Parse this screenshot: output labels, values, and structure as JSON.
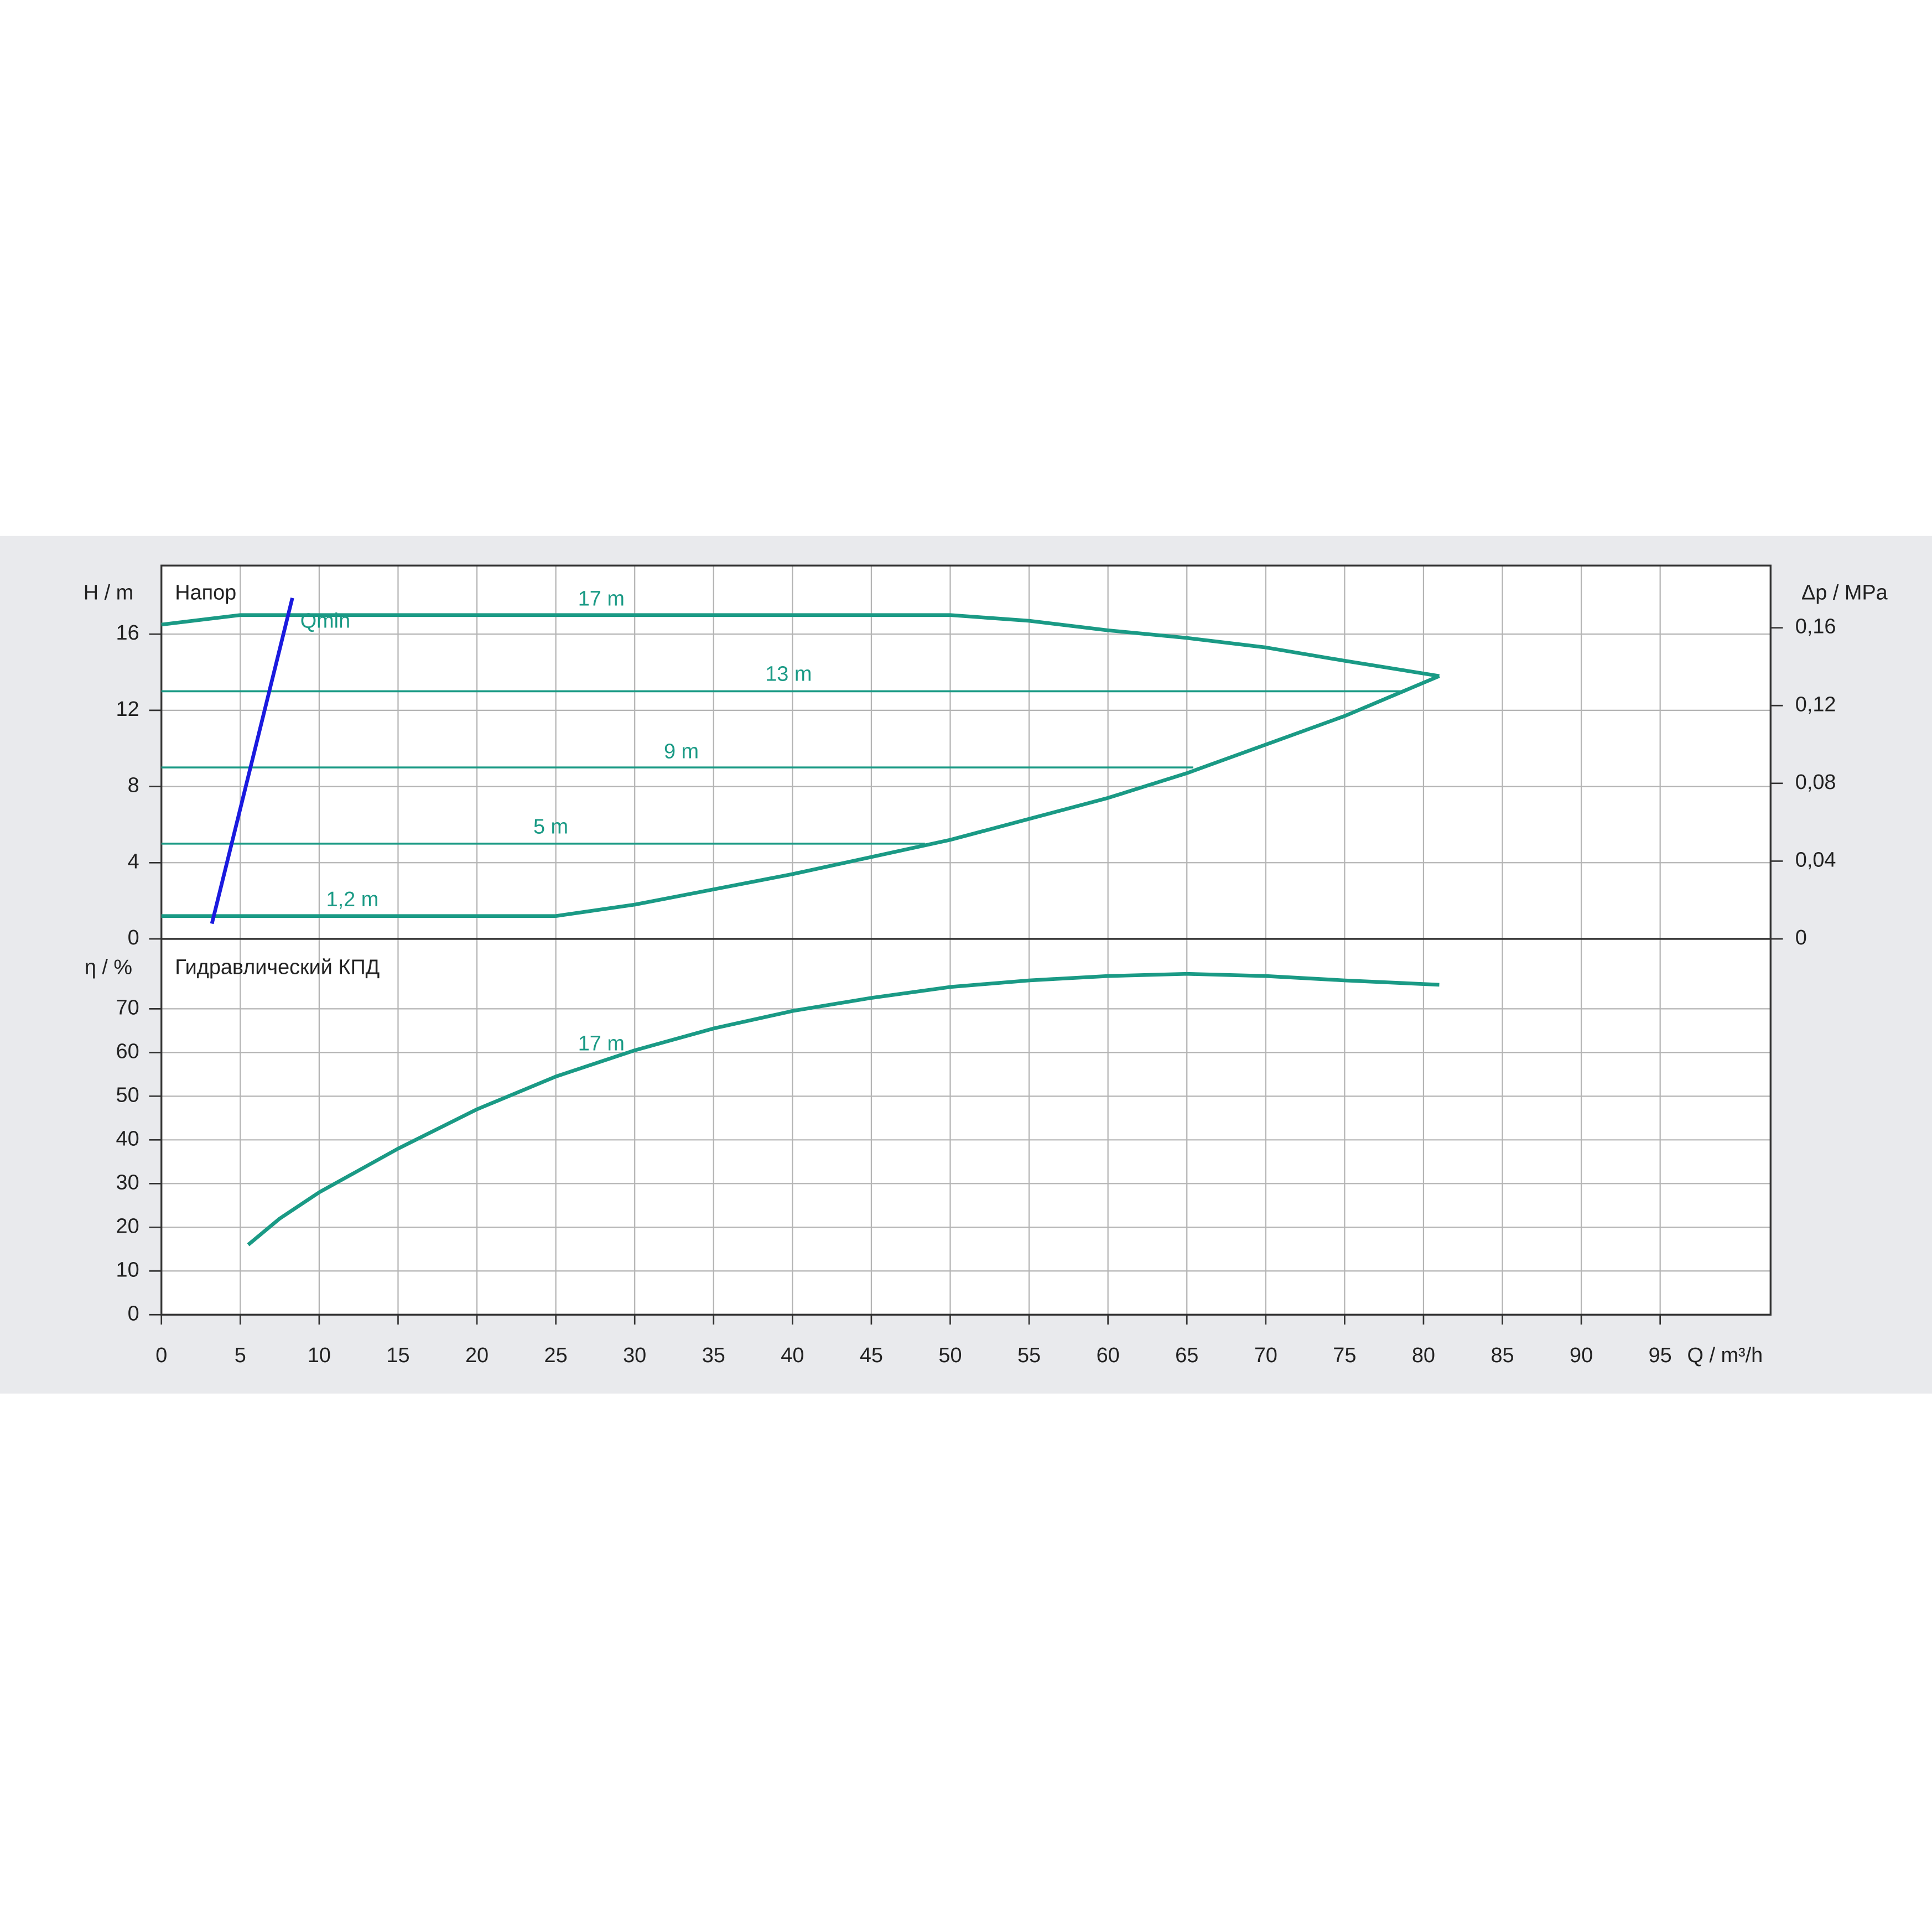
{
  "chart_data": [
    {
      "type": "line",
      "title": "Напор",
      "ylabel": "H / m",
      "y2label": "Δp / MPa",
      "xlim": [
        0,
        102
      ],
      "xticks": [
        0,
        5,
        10,
        15,
        20,
        25,
        30,
        35,
        40,
        45,
        50,
        55,
        60,
        65,
        70,
        75,
        80,
        85,
        90,
        95
      ],
      "ylim": [
        0,
        19.6
      ],
      "yticks": [
        0,
        4,
        8,
        12,
        16
      ],
      "y2lim": [
        0,
        0.192
      ],
      "y2ticks": [
        0,
        {
          "value": 0.04,
          "label": "0,04"
        },
        {
          "value": 0.08,
          "label": "0,08"
        },
        {
          "value": 0.12,
          "label": "0,12"
        },
        {
          "value": 0.16,
          "label": "0,16"
        }
      ],
      "grid": true,
      "series": [
        {
          "name": "17 m",
          "color": "#1a9a85",
          "x": [
            0,
            3,
            5,
            10,
            20,
            30,
            40,
            50,
            55,
            60,
            65,
            70,
            75,
            81
          ],
          "values": [
            16.5,
            16.8,
            17.0,
            17.0,
            17.0,
            17.0,
            17.0,
            17.0,
            16.7,
            16.2,
            15.8,
            15.3,
            14.6,
            13.8
          ]
        },
        {
          "name": "13 m",
          "color": "#1a9a85",
          "x": [
            0,
            78.7
          ],
          "values": [
            13,
            13
          ]
        },
        {
          "name": "9 m",
          "color": "#1a9a85",
          "x": [
            0,
            65.4
          ],
          "values": [
            9,
            9
          ]
        },
        {
          "name": "5 m",
          "color": "#1a9a85",
          "x": [
            0,
            48.4
          ],
          "values": [
            5,
            5
          ]
        },
        {
          "name": "1,2 m",
          "color": "#1a9a85",
          "x": [
            0,
            25,
            30,
            35,
            40,
            45,
            50,
            55,
            60,
            65,
            70,
            75,
            81
          ],
          "values": [
            1.2,
            1.2,
            1.8,
            2.6,
            3.4,
            4.3,
            5.2,
            6.3,
            7.4,
            8.7,
            10.2,
            11.7,
            13.8
          ]
        },
        {
          "name": "Qmin",
          "color": "#1a1adf",
          "x": [
            3.2,
            8.3
          ],
          "values": [
            0.8,
            17.9
          ]
        }
      ]
    },
    {
      "type": "line",
      "title": "Гидравлический КПД",
      "ylabel": "η / %",
      "xlabel": "Q / m³/h",
      "xlim": [
        0,
        102
      ],
      "xticks": [
        0,
        5,
        10,
        15,
        20,
        25,
        30,
        35,
        40,
        45,
        50,
        55,
        60,
        65,
        70,
        75,
        80,
        85,
        90,
        95
      ],
      "ylim": [
        0,
        86
      ],
      "yticks": [
        0,
        10,
        20,
        30,
        40,
        50,
        60,
        70
      ],
      "grid": true,
      "series": [
        {
          "name": "17 m",
          "color": "#1a9a85",
          "x": [
            5.5,
            7.5,
            10,
            12.5,
            15,
            20,
            25,
            30,
            35,
            40,
            45,
            50,
            55,
            60,
            65,
            70,
            75,
            81
          ],
          "values": [
            16,
            22,
            28,
            33,
            38,
            47,
            54.5,
            60.5,
            65.5,
            69.5,
            72.5,
            75,
            76.5,
            77.5,
            78,
            77.5,
            76.5,
            75.5
          ]
        }
      ]
    }
  ]
}
